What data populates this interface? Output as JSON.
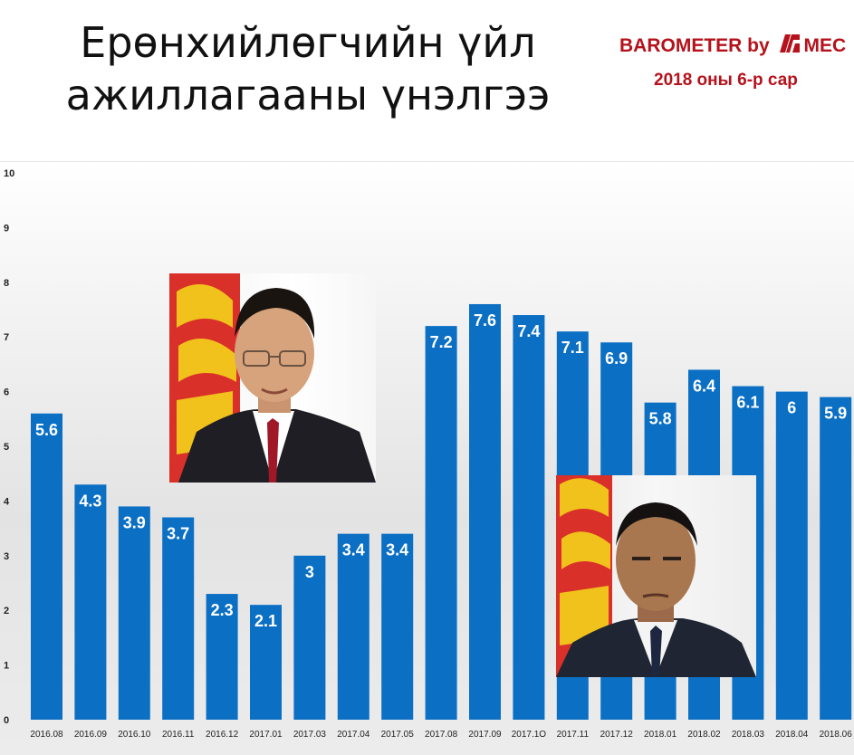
{
  "header": {
    "title_line1": "Ерөнхийлөгчийн үйл",
    "title_line2": "ажиллагааны үнэлгээ",
    "brand_prefix": "BAROMETER by",
    "brand_suffix": "MEC",
    "subtitle": "2018 оны 6-р сар"
  },
  "colors": {
    "bar": "#0b6fc4",
    "brand": "#b5121b",
    "label": "#ffffff",
    "flag_red": "#d9302a",
    "flag_gold": "#f1c21b"
  },
  "chart_data": {
    "type": "bar",
    "title": "Ерөнхийлөгчийн үйл ажиллагааны үнэлгээ",
    "categories": [
      "2016.08",
      "2016.09",
      "2016.10",
      "2016.11",
      "2016.12",
      "2017.01",
      "2017.03",
      "2017.04",
      "2017.05",
      "2017.08",
      "2017.09",
      "2017.1O",
      "2017.11",
      "2017.12",
      "2018.01",
      "2018.02",
      "2018.03",
      "2018.04",
      "2018.06"
    ],
    "values": [
      5.6,
      4.3,
      3.9,
      3.7,
      2.3,
      2.1,
      3,
      3.4,
      3.4,
      7.2,
      7.6,
      7.4,
      7.1,
      6.9,
      5.8,
      6.4,
      6.1,
      6,
      5.9
    ],
    "labels": [
      "5.6",
      "4.3",
      "3.9",
      "3.7",
      "2.3",
      "2.1",
      "3",
      "3.4",
      "3.4",
      "7.2",
      "7.6",
      "7.4",
      "7.1",
      "6.9",
      "5.8",
      "6.4",
      "6.1",
      "6",
      "5.9"
    ],
    "ylim": [
      0,
      10
    ],
    "yticks": [
      "0",
      "1",
      "2",
      "3",
      "4",
      "5",
      "6",
      "7",
      "8",
      "9",
      "10"
    ],
    "xlabel": "",
    "ylabel": "",
    "grid": false,
    "legend": "none"
  },
  "photos": [
    {
      "name": "portrait-president-2016",
      "icon": "portrait-icon"
    },
    {
      "name": "portrait-president-2017",
      "icon": "portrait-icon"
    }
  ]
}
